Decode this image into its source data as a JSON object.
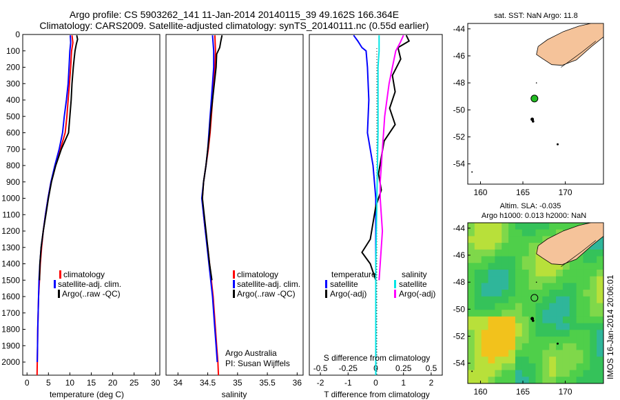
{
  "header": {
    "line1": "Argo profile: CS 5903262_141 11-Jan-2014 20140115_39 49.162S 166.364E",
    "line2": "Climatology: CARS2009. Satellite-adjusted climatology: synTS_20140111.nc (0.55d earlier)"
  },
  "side_stamp": "IMOS 16-Jan-2014 20:06:01",
  "colors": {
    "climatology": "#ff0000",
    "satellite": "#0000ff",
    "argo": "#000000",
    "s_satellite": "#00e5e5",
    "s_argo": "#ff00ff",
    "land": "#f5c39a",
    "float_marker": "#22bb22"
  },
  "chart_data": [
    {
      "id": "temperature",
      "type": "line",
      "xlabel": "temperature (deg C)",
      "ylabel": "",
      "xlim": [
        -1,
        31
      ],
      "ylim": [
        2080,
        0
      ],
      "xticks": [
        "0",
        "5",
        "10",
        "15",
        "20",
        "25",
        "30"
      ],
      "xtick_values": [
        0,
        5,
        10,
        15,
        20,
        25,
        30
      ],
      "yticks": [
        "0",
        "100",
        "200",
        "300",
        "400",
        "500",
        "600",
        "700",
        "800",
        "900",
        "1000",
        "1100",
        "1200",
        "1300",
        "1400",
        "1500",
        "1600",
        "1700",
        "1800",
        "1900",
        "2000"
      ],
      "ytick_values": [
        0,
        100,
        200,
        300,
        400,
        500,
        600,
        700,
        800,
        900,
        1000,
        1100,
        1200,
        1300,
        1400,
        1500,
        1600,
        1700,
        1800,
        1900,
        2000
      ],
      "legend": [
        "climatology",
        "satellite-adj. clim.",
        "Argo(..raw -QC)"
      ],
      "legend_position": "lower-center",
      "series": [
        {
          "name": "climatology",
          "color": "#ff0000",
          "points": [
            [
              10.5,
              5
            ],
            [
              10.7,
              50
            ],
            [
              10.4,
              100
            ],
            [
              10.2,
              200
            ],
            [
              9.9,
              300
            ],
            [
              9.6,
              400
            ],
            [
              9.3,
              500
            ],
            [
              8.9,
              600
            ],
            [
              7.8,
              700
            ],
            [
              6.6,
              800
            ],
            [
              5.6,
              900
            ],
            [
              4.9,
              1000
            ],
            [
              4.3,
              1100
            ],
            [
              3.8,
              1200
            ],
            [
              3.4,
              1300
            ],
            [
              3.1,
              1400
            ],
            [
              2.9,
              1500
            ],
            [
              2.7,
              1600
            ],
            [
              2.6,
              1700
            ],
            [
              2.5,
              1800
            ],
            [
              2.45,
              1900
            ],
            [
              2.4,
              2000
            ],
            [
              2.35,
              2080
            ]
          ]
        },
        {
          "name": "satellite-adj. clim.",
          "color": "#0000ff",
          "points": [
            [
              10.1,
              5
            ],
            [
              10.2,
              50
            ],
            [
              10.0,
              100
            ],
            [
              9.8,
              200
            ],
            [
              9.6,
              300
            ],
            [
              9.2,
              400
            ],
            [
              8.7,
              500
            ],
            [
              8.3,
              600
            ],
            [
              7.5,
              700
            ],
            [
              6.5,
              800
            ],
            [
              5.6,
              900
            ],
            [
              4.9,
              1000
            ],
            [
              4.3,
              1100
            ],
            [
              3.8,
              1200
            ],
            [
              3.3,
              1300
            ],
            [
              3.0,
              1400
            ],
            [
              2.8,
              1500
            ],
            [
              2.7,
              1600
            ],
            [
              2.6,
              1700
            ],
            [
              2.5,
              1800
            ],
            [
              2.45,
              1900
            ],
            [
              2.4,
              2000
            ]
          ]
        },
        {
          "name": "Argo(..raw -QC)",
          "color": "#000000",
          "points": [
            [
              11.6,
              5
            ],
            [
              11.8,
              30
            ],
            [
              11.5,
              60
            ],
            [
              11.2,
              100
            ],
            [
              11.0,
              150
            ],
            [
              10.8,
              200
            ],
            [
              10.5,
              300
            ],
            [
              10.3,
              400
            ],
            [
              10.0,
              500
            ],
            [
              9.7,
              600
            ],
            [
              8.0,
              700
            ],
            [
              6.7,
              800
            ],
            [
              5.7,
              900
            ],
            [
              5.0,
              1000
            ],
            [
              4.4,
              1100
            ],
            [
              3.8,
              1200
            ],
            [
              3.3,
              1300
            ],
            [
              3.0,
              1400
            ],
            [
              2.9,
              1500
            ]
          ]
        }
      ]
    },
    {
      "id": "salinity",
      "type": "line",
      "xlabel": "salinity",
      "ylabel": "",
      "xlim": [
        33.8,
        36.1
      ],
      "ylim": [
        2080,
        0
      ],
      "xticks": [
        "34",
        "34.5",
        "35",
        "35.5",
        "36"
      ],
      "xtick_values": [
        34,
        34.5,
        35,
        35.5,
        36
      ],
      "legend": [
        "climatology",
        "satellite-adj. clim.",
        "Argo(..raw -QC)"
      ],
      "legend_position": "lower-center",
      "annotations": [
        "Argo Australia",
        "PI: Susan Wijffels"
      ],
      "series": [
        {
          "name": "climatology",
          "color": "#ff0000",
          "points": [
            [
              34.62,
              5
            ],
            [
              34.63,
              100
            ],
            [
              34.62,
              200
            ],
            [
              34.6,
              300
            ],
            [
              34.58,
              400
            ],
            [
              34.56,
              500
            ],
            [
              34.54,
              600
            ],
            [
              34.51,
              700
            ],
            [
              34.47,
              800
            ],
            [
              34.43,
              900
            ],
            [
              34.41,
              1000
            ],
            [
              34.43,
              1100
            ],
            [
              34.46,
              1200
            ],
            [
              34.5,
              1300
            ],
            [
              34.53,
              1400
            ],
            [
              34.56,
              1500
            ],
            [
              34.59,
              1600
            ],
            [
              34.61,
              1700
            ],
            [
              34.63,
              1800
            ],
            [
              34.65,
              1900
            ],
            [
              34.67,
              2000
            ],
            [
              34.68,
              2080
            ]
          ]
        },
        {
          "name": "satellite-adj. clim.",
          "color": "#0000ff",
          "points": [
            [
              34.58,
              5
            ],
            [
              34.6,
              100
            ],
            [
              34.6,
              200
            ],
            [
              34.58,
              300
            ],
            [
              34.56,
              400
            ],
            [
              34.54,
              500
            ],
            [
              34.52,
              600
            ],
            [
              34.5,
              700
            ],
            [
              34.47,
              800
            ],
            [
              34.43,
              900
            ],
            [
              34.4,
              1000
            ],
            [
              34.43,
              1100
            ],
            [
              34.46,
              1200
            ],
            [
              34.49,
              1300
            ],
            [
              34.52,
              1400
            ],
            [
              34.55,
              1500
            ],
            [
              34.58,
              1600
            ],
            [
              34.6,
              1700
            ],
            [
              34.62,
              1800
            ],
            [
              34.64,
              1900
            ],
            [
              34.66,
              2000
            ]
          ]
        },
        {
          "name": "Argo(..raw -QC)",
          "color": "#000000",
          "points": [
            [
              34.74,
              5
            ],
            [
              34.72,
              40
            ],
            [
              34.7,
              80
            ],
            [
              34.65,
              120
            ],
            [
              34.64,
              200
            ],
            [
              34.61,
              300
            ],
            [
              34.58,
              400
            ],
            [
              34.55,
              500
            ],
            [
              34.53,
              600
            ],
            [
              34.5,
              700
            ],
            [
              34.47,
              800
            ],
            [
              34.43,
              900
            ],
            [
              34.41,
              1000
            ],
            [
              34.44,
              1100
            ],
            [
              34.47,
              1200
            ],
            [
              34.5,
              1300
            ],
            [
              34.53,
              1400
            ],
            [
              34.57,
              1500
            ]
          ]
        }
      ]
    },
    {
      "id": "differences",
      "type": "line",
      "xlabel": "T difference from climatology",
      "x2label": "S difference from climatology",
      "xlim": [
        -2.4,
        2.4
      ],
      "ylim": [
        2080,
        0
      ],
      "xticks": [
        "-2",
        "-1",
        "0",
        "1",
        "2"
      ],
      "xtick_values": [
        -2,
        -1,
        0,
        1,
        2
      ],
      "x2ticks": [
        "-0.5",
        "-0.25",
        "0",
        "0.25",
        "0.5"
      ],
      "x2tick_values": [
        -0.5,
        -0.25,
        0,
        0.25,
        0.5
      ],
      "legend_titles": [
        "temperature",
        "salinity"
      ],
      "legend": [
        "satellite",
        "Argo(-adj)",
        "satellite",
        "Argo(-adj)"
      ],
      "legend_position": "lower-center",
      "series": [
        {
          "name": "satellite",
          "group": "temperature",
          "color": "#0000ff",
          "points": [
            [
              -0.8,
              5
            ],
            [
              -0.65,
              40
            ],
            [
              -0.5,
              80
            ],
            [
              -0.35,
              100
            ],
            [
              -0.3,
              200
            ],
            [
              -0.25,
              400
            ],
            [
              -0.3,
              600
            ],
            [
              -0.1,
              800
            ],
            [
              0,
              1000
            ],
            [
              0,
              1200
            ],
            [
              0,
              1400
            ],
            [
              0,
              1600
            ],
            [
              0,
              2000
            ]
          ]
        },
        {
          "name": "Argo(-adj)",
          "group": "temperature",
          "color": "#000000",
          "points": [
            [
              1.1,
              5
            ],
            [
              1.2,
              40
            ],
            [
              0.8,
              80
            ],
            [
              0.9,
              150
            ],
            [
              0.6,
              250
            ],
            [
              0.7,
              350
            ],
            [
              0.5,
              450
            ],
            [
              0.7,
              550
            ],
            [
              0.3,
              650
            ],
            [
              0.2,
              750
            ],
            [
              0.1,
              850
            ],
            [
              0.2,
              950
            ],
            [
              0,
              1050
            ],
            [
              -0.1,
              1150
            ],
            [
              -0.2,
              1250
            ],
            [
              -0.5,
              1330
            ],
            [
              -0.2,
              1400
            ],
            [
              0,
              1500
            ]
          ]
        },
        {
          "name": "satellite",
          "group": "salinity",
          "color": "#00e5e5",
          "points": [
            [
              0.03,
              5
            ],
            [
              0.03,
              100
            ],
            [
              0.02,
              200
            ],
            [
              0.02,
              600
            ],
            [
              0.01,
              1000
            ],
            [
              0,
              1400
            ],
            [
              0,
              1700
            ],
            [
              0,
              2080
            ]
          ]
        },
        {
          "name": "Argo(-adj)",
          "group": "salinity",
          "color": "#ff00ff",
          "points": [
            [
              0.25,
              5
            ],
            [
              0.22,
              50
            ],
            [
              0.18,
              100
            ],
            [
              0.15,
              200
            ],
            [
              0.12,
              300
            ],
            [
              0.1,
              400
            ],
            [
              0.08,
              500
            ],
            [
              0.07,
              600
            ],
            [
              0.06,
              700
            ],
            [
              0.05,
              800
            ],
            [
              0.04,
              900
            ],
            [
              0.04,
              1000
            ],
            [
              0.05,
              1100
            ],
            [
              0.06,
              1200
            ],
            [
              0.05,
              1300
            ],
            [
              0.04,
              1400
            ],
            [
              0.03,
              1500
            ]
          ]
        }
      ]
    },
    {
      "id": "sst_map",
      "type": "map",
      "title": "sat. SST: NaN Argo: 11.8",
      "xlim": [
        158.5,
        174.5
      ],
      "ylim": [
        -55.5,
        -43.6
      ],
      "xticks": [
        "160",
        "165",
        "170"
      ],
      "xtick_values": [
        160,
        165,
        170
      ],
      "yticks": [
        "-44",
        "-46",
        "-48",
        "-50",
        "-52",
        "-54"
      ],
      "ytick_values": [
        -44,
        -46,
        -48,
        -50,
        -52,
        -54
      ],
      "float_position": [
        166.36,
        -49.16
      ]
    },
    {
      "id": "sla_map",
      "type": "heatmap",
      "title": "Altim. SLA: -0.035",
      "subtitle": "Argo h1000: 0.013 h2000: NaN",
      "xlim": [
        158.5,
        174.5
      ],
      "ylim": [
        -55.5,
        -43.6
      ],
      "xticks": [
        "160",
        "165",
        "170"
      ],
      "xtick_values": [
        160,
        165,
        170
      ],
      "yticks": [
        "-44",
        "-46",
        "-48",
        "-50",
        "-52",
        "-54"
      ],
      "ytick_values": [
        -44,
        -46,
        -48,
        -50,
        -52,
        -54
      ],
      "float_position": [
        166.36,
        -49.16
      ]
    }
  ]
}
